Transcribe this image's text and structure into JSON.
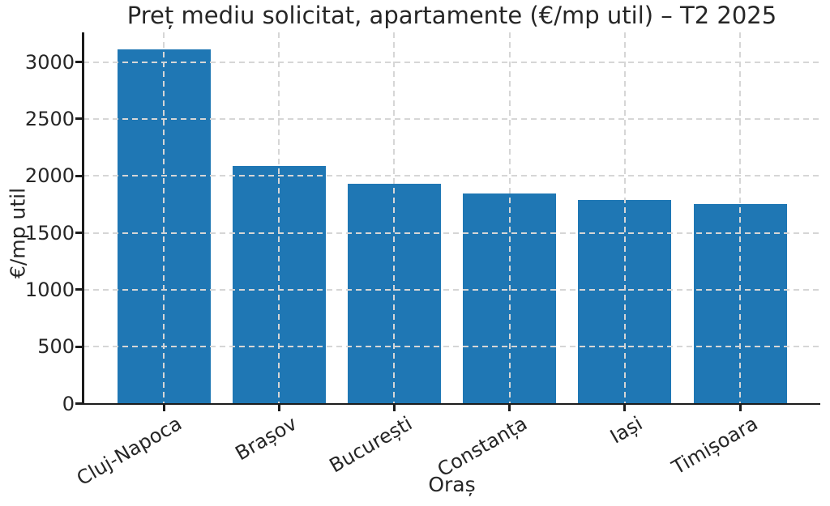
{
  "chart_data": {
    "type": "bar",
    "title": "Preț mediu solicitat, apartamente (€/mp util) – T2 2025",
    "xlabel": "Oraș",
    "ylabel": "€/mp util",
    "categories": [
      "Cluj-Napoca",
      "Brașov",
      "București",
      "Constanța",
      "Iași",
      "Timișoara"
    ],
    "values": [
      3110,
      2090,
      1930,
      1845,
      1785,
      1755
    ],
    "yticks": [
      0,
      500,
      1000,
      1500,
      2000,
      2500,
      3000
    ],
    "ylim": [
      0,
      3260
    ],
    "grid": "dashed, drawn above bars, horizontal and vertical",
    "legend": "none",
    "bar_color": "#1f77b4",
    "grid_color": "#d6d6d6",
    "axis_color": "#1c1c1c",
    "text_color": "#262626",
    "background_color": "#ffffff"
  }
}
